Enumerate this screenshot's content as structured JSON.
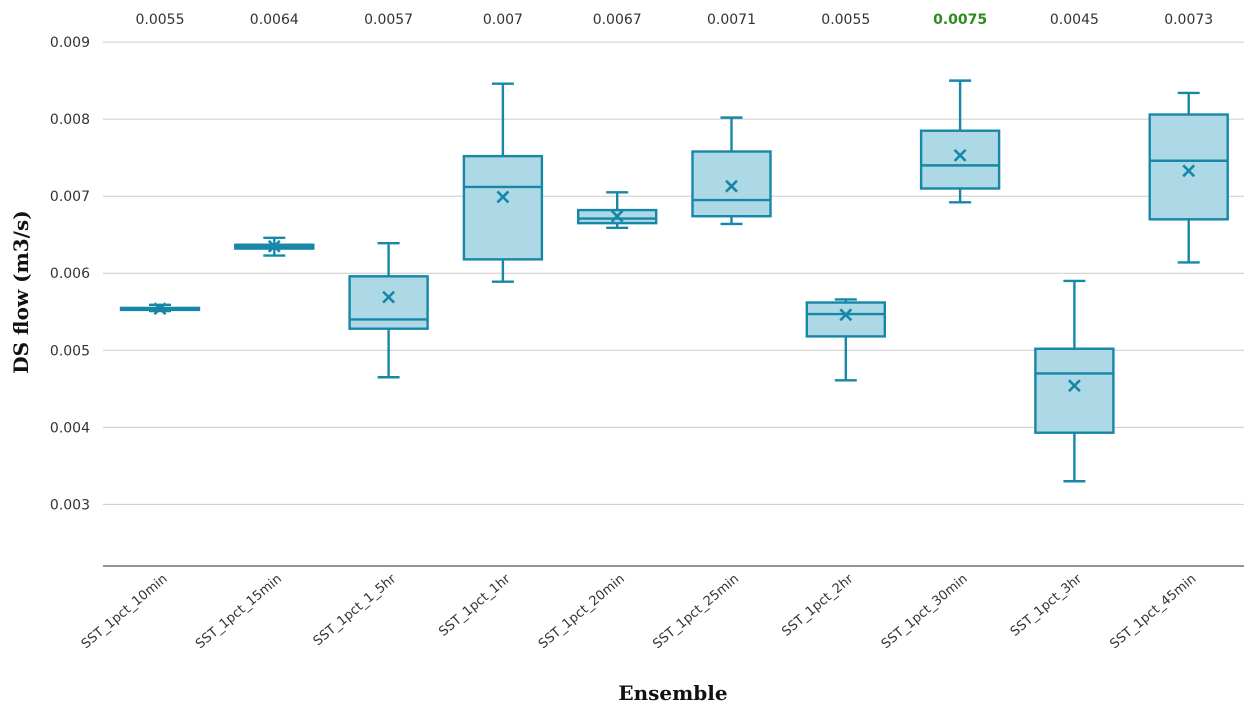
{
  "chart_data": {
    "type": "boxplot",
    "title": "",
    "xlabel": "Ensemble",
    "ylabel": "DS flow (m3/s)",
    "ylim": [
      0.0022,
      0.0093
    ],
    "yticks": [
      "0.003",
      "0.004",
      "0.005",
      "0.006",
      "0.007",
      "0.008",
      "0.009"
    ],
    "grid": true,
    "highlight_color": "#2e8b1f",
    "box_color": "#add8e6",
    "line_color": "#1787a7",
    "categories": [
      "SST_1pct_10min",
      "SST_1pct_15min",
      "SST_1pct_1_5hr",
      "SST_1pct_1hr",
      "SST_1pct_20min",
      "SST_1pct_25min",
      "SST_1pct_2hr",
      "SST_1pct_30min",
      "SST_1pct_3hr",
      "SST_1pct_45min"
    ],
    "top_labels": [
      "0.0055",
      "0.0064",
      "0.0057",
      "0.007",
      "0.0067",
      "0.0071",
      "0.0055",
      "0.0075",
      "0.0045",
      "0.0073"
    ],
    "highlight_index": 7,
    "boxes": [
      {
        "min": 0.00551,
        "q1": 0.00553,
        "median": 0.00554,
        "q3": 0.00555,
        "max": 0.00559,
        "mean": 0.00554
      },
      {
        "min": 0.00623,
        "q1": 0.00632,
        "median": 0.00634,
        "q3": 0.00637,
        "max": 0.00646,
        "mean": 0.00635
      },
      {
        "min": 0.00465,
        "q1": 0.00528,
        "median": 0.0054,
        "q3": 0.00596,
        "max": 0.00639,
        "mean": 0.00569
      },
      {
        "min": 0.00589,
        "q1": 0.00618,
        "median": 0.00712,
        "q3": 0.00752,
        "max": 0.00846,
        "mean": 0.00699
      },
      {
        "min": 0.00659,
        "q1": 0.00665,
        "median": 0.00671,
        "q3": 0.00682,
        "max": 0.00705,
        "mean": 0.00674
      },
      {
        "min": 0.00664,
        "q1": 0.00674,
        "median": 0.00695,
        "q3": 0.00758,
        "max": 0.00802,
        "mean": 0.00713
      },
      {
        "min": 0.00461,
        "q1": 0.00518,
        "median": 0.00547,
        "q3": 0.00562,
        "max": 0.00566,
        "mean": 0.00546
      },
      {
        "min": 0.00692,
        "q1": 0.0071,
        "median": 0.0074,
        "q3": 0.00785,
        "max": 0.0085,
        "mean": 0.00753
      },
      {
        "min": 0.0033,
        "q1": 0.00393,
        "median": 0.0047,
        "q3": 0.00502,
        "max": 0.0059,
        "mean": 0.00454
      },
      {
        "min": 0.00614,
        "q1": 0.0067,
        "median": 0.00746,
        "q3": 0.00806,
        "max": 0.00834,
        "mean": 0.00733
      }
    ]
  }
}
